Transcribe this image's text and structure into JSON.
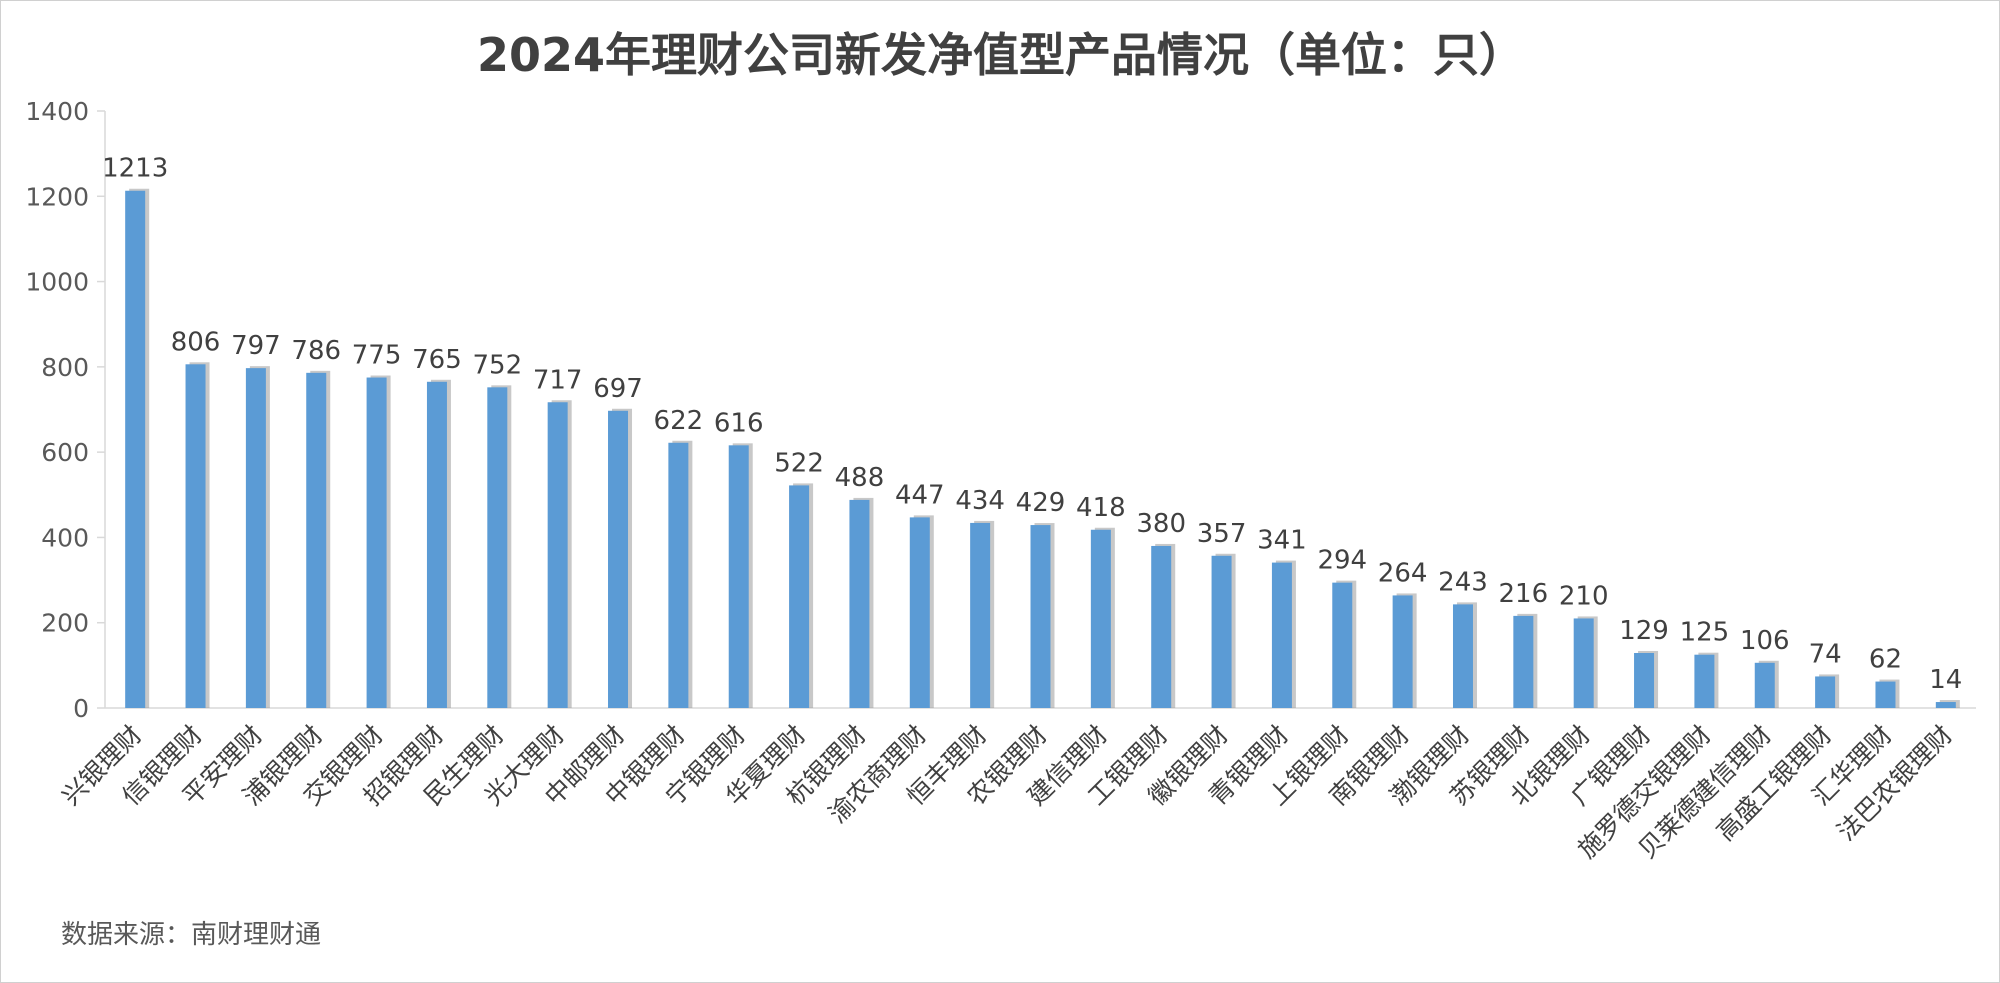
{
  "chart_data": {
    "type": "bar",
    "title": "2024年理财公司新发净值型产品情况（单位：只）",
    "xlabel": "",
    "ylabel": "",
    "ylim": [
      0,
      1400
    ],
    "yticks": [
      0,
      200,
      400,
      600,
      800,
      1000,
      1200,
      1400
    ],
    "grid": false,
    "legend": "none",
    "bar_color": "#5b9bd5",
    "categories": [
      "兴银理财",
      "信银理财",
      "平安理财",
      "浦银理财",
      "交银理财",
      "招银理财",
      "民生理财",
      "光大理财",
      "中邮理财",
      "中银理财",
      "宁银理财",
      "华夏理财",
      "杭银理财",
      "渝农商理财",
      "恒丰理财",
      "农银理财",
      "建信理财",
      "工银理财",
      "徽银理财",
      "青银理财",
      "上银理财",
      "南银理财",
      "渤银理财",
      "苏银理财",
      "北银理财",
      "广银理财",
      "施罗德交银理财",
      "贝莱德建信理财",
      "高盛工银理财",
      "汇华理财",
      "法巴农银理财"
    ],
    "values": [
      1213,
      806,
      797,
      786,
      775,
      765,
      752,
      717,
      697,
      622,
      616,
      522,
      488,
      447,
      434,
      429,
      418,
      380,
      357,
      341,
      294,
      264,
      243,
      216,
      210,
      129,
      125,
      106,
      74,
      62,
      14
    ]
  },
  "source": "数据来源：南财理财通"
}
